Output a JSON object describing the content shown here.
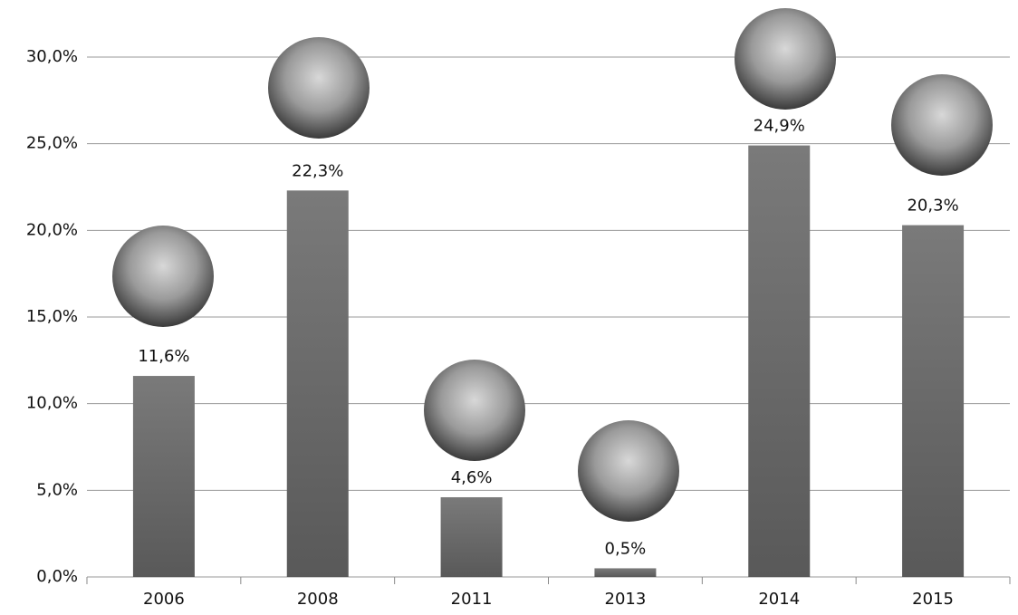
{
  "chart_data": {
    "type": "bar",
    "categories": [
      "2006",
      "2008",
      "2011",
      "2013",
      "2014",
      "2015"
    ],
    "values": [
      11.6,
      22.3,
      4.6,
      0.5,
      24.9,
      20.3
    ],
    "value_labels": [
      "11,6%",
      "22,3%",
      "4,6%",
      "0,5%",
      "24,9%",
      "20,3%"
    ],
    "color": "#6e6e6e",
    "ylim": [
      0,
      30
    ],
    "yticks": [
      {
        "value": 0,
        "label": "0,0%"
      },
      {
        "value": 5,
        "label": "5,0%"
      },
      {
        "value": 10,
        "label": "10,0%"
      },
      {
        "value": 15,
        "label": "15,0%"
      },
      {
        "value": 20,
        "label": "20,0%"
      },
      {
        "value": 25,
        "label": "25,0%"
      },
      {
        "value": 30,
        "label": "30,0%"
      }
    ],
    "grid": true
  }
}
